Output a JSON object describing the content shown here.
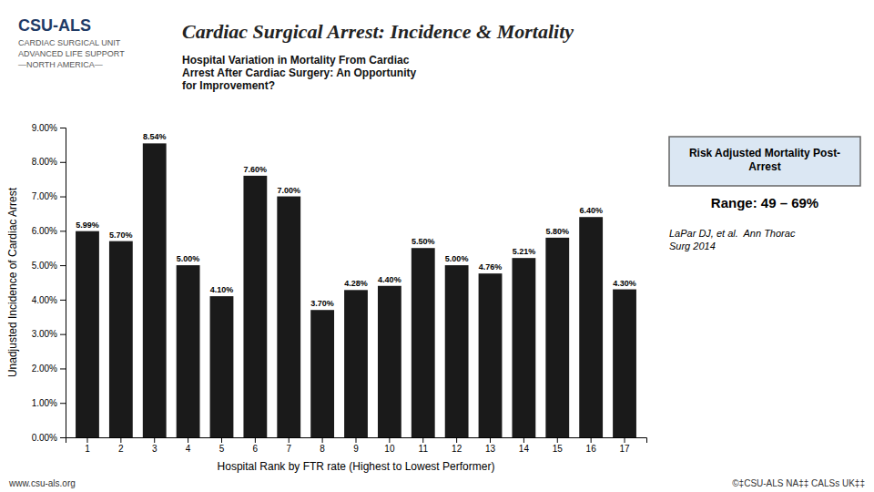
{
  "chart_data": {
    "type": "bar",
    "title": "Cardiac Surgical Arrest: Incidence & Mortality",
    "subtitle": "Hospital Variation in Mortality From Cardiac\nArrest After Cardiac Surgery: An Opportunity\nfor Improvement?",
    "x_label": "Hospital Rank by FTR rate (Highest to Lowest Performer)",
    "y_label": "Unadjusted Incidence of Cardiac Arrest",
    "categories": [
      "1",
      "2",
      "3",
      "4",
      "5",
      "6",
      "7",
      "8",
      "9",
      "10",
      "11",
      "12",
      "13",
      "14",
      "15",
      "16",
      "17"
    ],
    "values": [
      5.99,
      5.7,
      8.54,
      5.0,
      4.1,
      7.6,
      7.0,
      3.7,
      4.28,
      4.4,
      5.5,
      5.0,
      4.76,
      5.21,
      5.8,
      6.4,
      4.3
    ],
    "value_labels": [
      "5.99%",
      "5.70%",
      "8.54%",
      "5.00%",
      "4.10%",
      "7.60%",
      "7.00%",
      "3.70%",
      "4.28%",
      "4.40%",
      "5.50%",
      "5.00%",
      "4.76%",
      "5.21%",
      "5.80%",
      "6.40%",
      "4.30%"
    ],
    "data_labels": true,
    "color": "#1a1a1a",
    "ylim": [
      0,
      9.0
    ],
    "yticks": [
      {
        "value": 0.0,
        "label": "0.00%"
      },
      {
        "value": 1.0,
        "label": "1.00%"
      },
      {
        "value": 2.0,
        "label": "2.00%"
      },
      {
        "value": 3.0,
        "label": "3.00%"
      },
      {
        "value": 4.0,
        "label": "4.00%"
      },
      {
        "value": 5.0,
        "label": "5.00%"
      },
      {
        "value": 6.0,
        "label": "6.00%"
      },
      {
        "value": 7.0,
        "label": "7.00%"
      },
      {
        "value": 8.0,
        "label": "8.00%"
      },
      {
        "value": 9.0,
        "label": "9.00%"
      }
    ],
    "grid": false,
    "annotations": [
      "Risk Adjusted Mortality Post-\nArrest",
      "Range: 49 – 69%",
      "LaPar DJ, et al.  Ann Thorac\nSurg 2014",
      "www.csu-als.org",
      "©‡CSU-ALS NA‡‡ CALSs UK‡‡",
      "CSU-ALS",
      "CARDIAC SURGICAL UNIT",
      "ADVANCED LIFE SUPPORT",
      "—NORTH AMERICA—"
    ]
  }
}
